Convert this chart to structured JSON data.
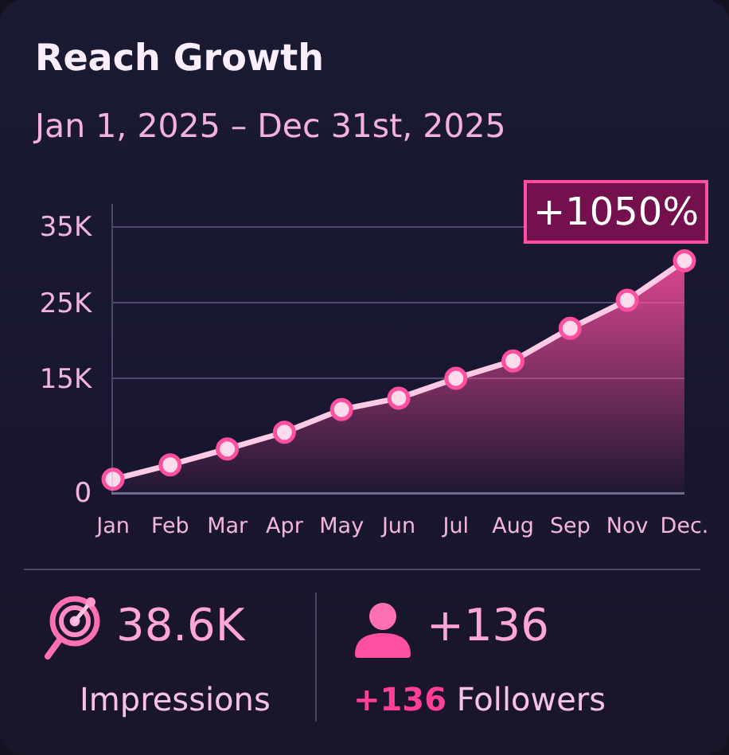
{
  "chart_data": [
    {
      "type": "area",
      "title": "Reach Growth",
      "subtitle": "Jan 1, 2025 – Dec 31st, 2025",
      "categories": [
        "Jan",
        "Feb",
        "Mar",
        "Apr",
        "May",
        "Jun",
        "Jul",
        "Aug",
        "Sep",
        "Nov",
        "Dec."
      ],
      "values": [
        1700,
        3600,
        5700,
        7900,
        10900,
        12400,
        15000,
        17300,
        21600,
        25300,
        30500
      ],
      "color": "#ff4fa0",
      "ylim": [
        0,
        38000
      ],
      "yticks": [
        0,
        {
          "value": 15000,
          "label": "15K"
        },
        {
          "value": 25000,
          "label": "25K"
        },
        {
          "value": 35000,
          "label": "35K"
        }
      ],
      "grid": "y",
      "marker": "circle",
      "annotations": [
        "+1050%"
      ]
    },
    {
      "type": "other",
      "annotations": [
        "38.6K",
        "Impressions",
        "+136",
        "+136 Followers"
      ]
    }
  ]
}
